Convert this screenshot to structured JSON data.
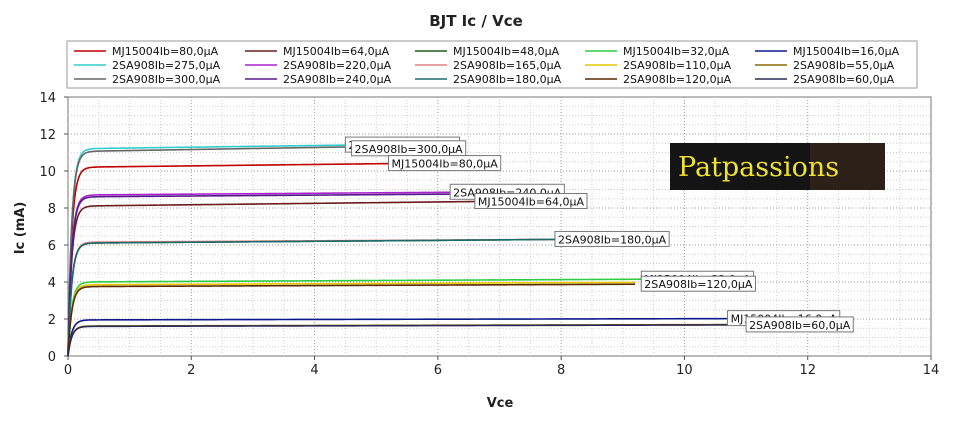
{
  "chart_data": {
    "type": "line",
    "title": "BJT Ic / Vce",
    "xlabel": "Vce",
    "ylabel": "Ic (mA)",
    "xlim": [
      0,
      14
    ],
    "ylim": [
      0,
      14
    ],
    "xticks": [
      0,
      2,
      4,
      6,
      8,
      10,
      12,
      14
    ],
    "yticks": [
      0,
      2,
      4,
      6,
      8,
      10,
      12,
      14
    ],
    "grid": true,
    "legend_position": "top",
    "series": [
      {
        "name": "MJ15004Ib=80,0µA",
        "color": "#c00000",
        "ic_sat": 10.2,
        "ic_end": 10.4,
        "x_end": 5.2
      },
      {
        "name": "MJ15004Ib=64,0µA",
        "color": "#6b1d1d",
        "ic_sat": 8.1,
        "ic_end": 8.35,
        "x_end": 6.6
      },
      {
        "name": "MJ15004Ib=48,0µA",
        "color": "#1b5e20",
        "ic_sat": 6.1,
        "ic_end": 6.3,
        "x_end": 7.9
      },
      {
        "name": "MJ15004Ib=32,0µA",
        "color": "#2ecc40",
        "ic_sat": 4.0,
        "ic_end": 4.15,
        "x_end": 9.3
      },
      {
        "name": "MJ15004Ib=16,0µA",
        "color": "#0b1a8c",
        "ic_sat": 1.95,
        "ic_end": 2.02,
        "x_end": 10.7
      },
      {
        "name": "2SA908Ib=275,0µA",
        "color": "#33cccc",
        "ic_sat": 11.2,
        "ic_end": 11.4,
        "x_end": 4.5
      },
      {
        "name": "2SA908Ib=220,0µA",
        "color": "#aa22cc",
        "ic_sat": 8.7,
        "ic_end": 8.85,
        "x_end": 6.2
      },
      {
        "name": "2SA908Ib=165,0µA",
        "color": "#e08080",
        "ic_sat": 6.15,
        "ic_end": 6.3,
        "x_end": 7.8
      },
      {
        "name": "2SA908Ib=110,0µA",
        "color": "#e6c700",
        "ic_sat": 3.85,
        "ic_end": 3.98,
        "x_end": 9.2
      },
      {
        "name": "2SA908Ib=55,0µA",
        "color": "#8a6d00",
        "ic_sat": 1.62,
        "ic_end": 1.7,
        "x_end": 11.0
      },
      {
        "name": "2SA908Ib=300,0µA",
        "color": "#666666",
        "ic_sat": 11.05,
        "ic_end": 11.3,
        "x_end": 4.5
      },
      {
        "name": "2SA908Ib=240,0µA",
        "color": "#551a8b",
        "ic_sat": 8.6,
        "ic_end": 8.75,
        "x_end": 6.2
      },
      {
        "name": "2SA908Ib=180,0µA",
        "color": "#1a6b6b",
        "ic_sat": 6.1,
        "ic_end": 6.3,
        "x_end": 7.9
      },
      {
        "name": "2SA908Ib=120,0µA",
        "color": "#5a2a00",
        "ic_sat": 3.75,
        "ic_end": 3.88,
        "x_end": 9.2
      },
      {
        "name": "2SA908Ib=60,0µA",
        "color": "#2a2a55",
        "ic_sat": 1.6,
        "ic_end": 1.68,
        "x_end": 11.0
      }
    ],
    "annotations": [
      {
        "text": "2SA908Ib=275,0µA",
        "x": 4.5,
        "y": 11.4
      },
      {
        "text": "2SA908Ib=300,0µA",
        "x": 4.6,
        "y": 11.2
      },
      {
        "text": "MJ15004Ib=80,0µA",
        "x": 5.2,
        "y": 10.4
      },
      {
        "text": "2SA908Ib=240,0µA",
        "x": 6.2,
        "y": 8.85
      },
      {
        "text": "MJ15004Ib=64,0µA",
        "x": 6.6,
        "y": 8.35
      },
      {
        "text": "2SA908Ib=180,0µA",
        "x": 7.9,
        "y": 6.3
      },
      {
        "text": "MJ15004Ib=32,0µA",
        "x": 9.3,
        "y": 4.15
      },
      {
        "text": "2SA908Ib=120,0µA",
        "x": 9.3,
        "y": 3.88
      },
      {
        "text": "MJ15004Ib=16,0µA",
        "x": 10.7,
        "y": 2.02
      },
      {
        "text": "2SA908Ib=60,0µA",
        "x": 11.0,
        "y": 1.68
      }
    ]
  },
  "logo": {
    "text": "Patpassions"
  }
}
